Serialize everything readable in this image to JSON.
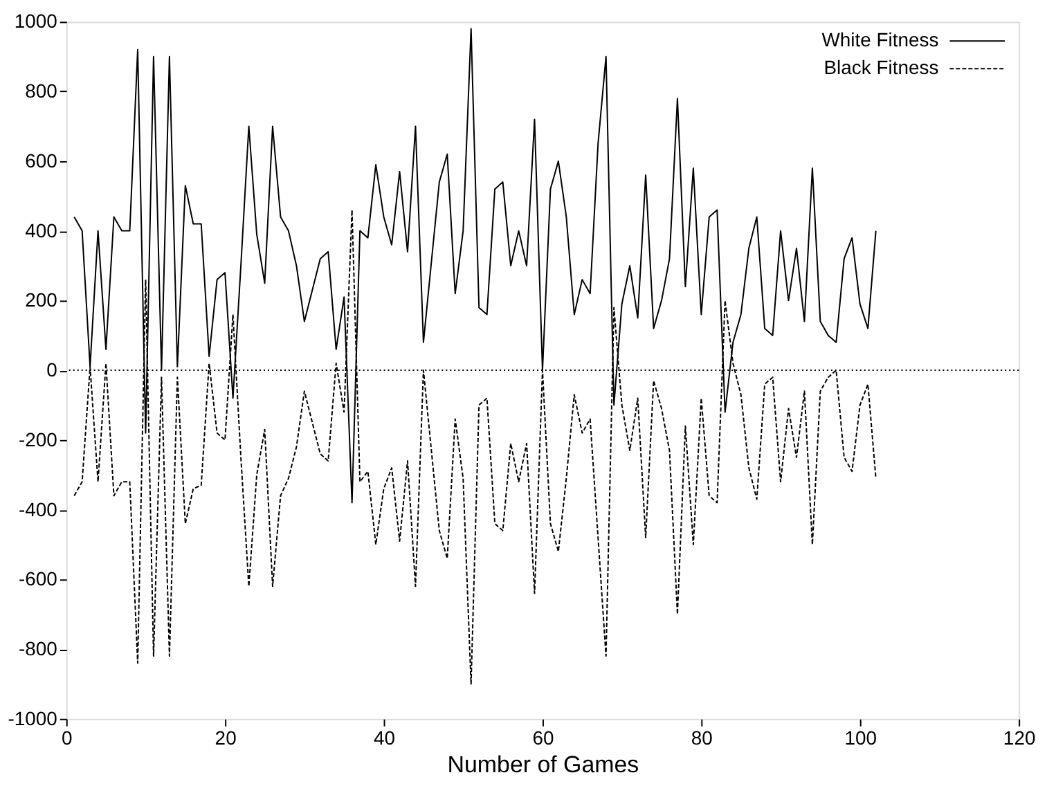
{
  "chart_data": {
    "type": "line",
    "xlabel": "Number of Games",
    "x": [
      1,
      2,
      3,
      4,
      5,
      6,
      7,
      8,
      9,
      10,
      11,
      12,
      13,
      14,
      15,
      16,
      17,
      18,
      19,
      20,
      21,
      22,
      23,
      24,
      25,
      26,
      27,
      28,
      29,
      30,
      31,
      32,
      33,
      34,
      35,
      36,
      37,
      38,
      39,
      40,
      41,
      42,
      43,
      44,
      45,
      46,
      47,
      48,
      49,
      50,
      51,
      52,
      53,
      54,
      55,
      56,
      57,
      58,
      59,
      60,
      61,
      62,
      63,
      64,
      65,
      66,
      67,
      68,
      69,
      70,
      71,
      72,
      73,
      74,
      75,
      76,
      77,
      78,
      79,
      80,
      81,
      82,
      83,
      84,
      85,
      86,
      87,
      88,
      89,
      90,
      91,
      92,
      93,
      94,
      95,
      96,
      97,
      98,
      99,
      100,
      101,
      102
    ],
    "series": [
      {
        "name": "White Fitness",
        "color": "#000000",
        "line_style": "solid",
        "values": [
          440,
          400,
          10,
          400,
          60,
          440,
          400,
          400,
          920,
          -180,
          900,
          0,
          900,
          10,
          530,
          420,
          420,
          40,
          260,
          280,
          -80,
          300,
          700,
          390,
          250,
          700,
          440,
          400,
          300,
          140,
          230,
          320,
          340,
          60,
          210,
          -380,
          400,
          380,
          590,
          440,
          360,
          570,
          340,
          700,
          80,
          310,
          540,
          620,
          220,
          400,
          980,
          180,
          160,
          520,
          540,
          300,
          400,
          300,
          720,
          0,
          520,
          600,
          440,
          160,
          260,
          220,
          650,
          900,
          -100,
          190,
          300,
          150,
          560,
          120,
          200,
          320,
          780,
          240,
          580,
          160,
          440,
          460,
          -120,
          80,
          160,
          350,
          440,
          120,
          100,
          400,
          200,
          350,
          140,
          580,
          140,
          100,
          80,
          320,
          380,
          190,
          120,
          400
        ]
      },
      {
        "name": "Black Fitness",
        "color": "#000000",
        "line_style": "dashed",
        "values": [
          -360,
          -320,
          10,
          -320,
          20,
          -360,
          -320,
          -320,
          -840,
          260,
          -820,
          -20,
          -820,
          -20,
          -440,
          -340,
          -330,
          20,
          -180,
          -200,
          160,
          -250,
          -620,
          -300,
          -170,
          -620,
          -360,
          -310,
          -220,
          -60,
          -150,
          -240,
          -260,
          20,
          -120,
          460,
          -320,
          -290,
          -500,
          -340,
          -280,
          -490,
          -260,
          -620,
          0,
          -230,
          -460,
          -540,
          -140,
          -310,
          -900,
          -100,
          -80,
          -440,
          -460,
          -210,
          -320,
          -210,
          -640,
          0,
          -440,
          -520,
          -310,
          -70,
          -180,
          -140,
          -480,
          -820,
          180,
          -100,
          -230,
          -80,
          -480,
          -30,
          -110,
          -230,
          -700,
          -160,
          -500,
          -80,
          -360,
          -380,
          200,
          20,
          -70,
          -280,
          -370,
          -40,
          -20,
          -320,
          -110,
          -250,
          -60,
          -500,
          -60,
          -20,
          0,
          -250,
          -290,
          -100,
          -40,
          -310
        ]
      }
    ],
    "xlim": [
      0,
      120
    ],
    "xticks": [
      0,
      20,
      40,
      60,
      80,
      100,
      120
    ],
    "ylim": [
      -1000,
      1000
    ],
    "yticks": [
      -1000,
      -800,
      -600,
      -400,
      -200,
      0,
      200,
      400,
      600,
      800,
      1000
    ],
    "ref_lines": [
      {
        "axis": "y",
        "value": 0,
        "line_style": "dotted",
        "color": "#000000"
      }
    ],
    "grid": false,
    "legend": "top right",
    "marker": "none"
  }
}
